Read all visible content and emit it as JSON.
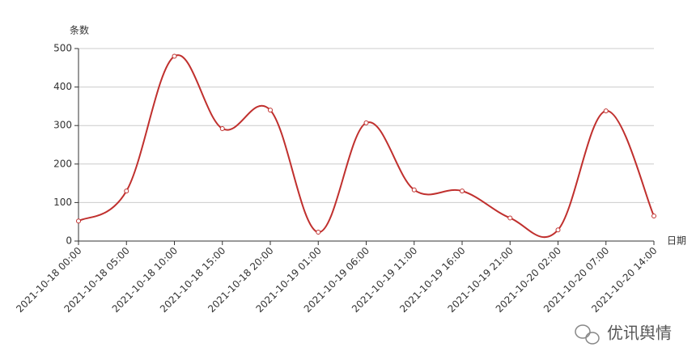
{
  "chart_data": {
    "type": "line",
    "y_axis_label": "条数",
    "x_axis_label": "日期",
    "categories": [
      "2021-10-18 00:00",
      "2021-10-18 05:00",
      "2021-10-18 10:00",
      "2021-10-18 15:00",
      "2021-10-18 20:00",
      "2021-10-19 01:00",
      "2021-10-19 06:00",
      "2021-10-19 11:00",
      "2021-10-19 16:00",
      "2021-10-19 21:00",
      "2021-10-20 02:00",
      "2021-10-20 07:00",
      "2021-10-20 14:00"
    ],
    "values": [
      52,
      130,
      480,
      292,
      340,
      23,
      307,
      133,
      130,
      60,
      29,
      338,
      65
    ],
    "color": "#c0302e",
    "smooth": true,
    "ylim": [
      0,
      500
    ],
    "yticks": [
      0,
      100,
      200,
      300,
      400,
      500
    ],
    "grid": true
  },
  "watermark": "优讯舆情"
}
